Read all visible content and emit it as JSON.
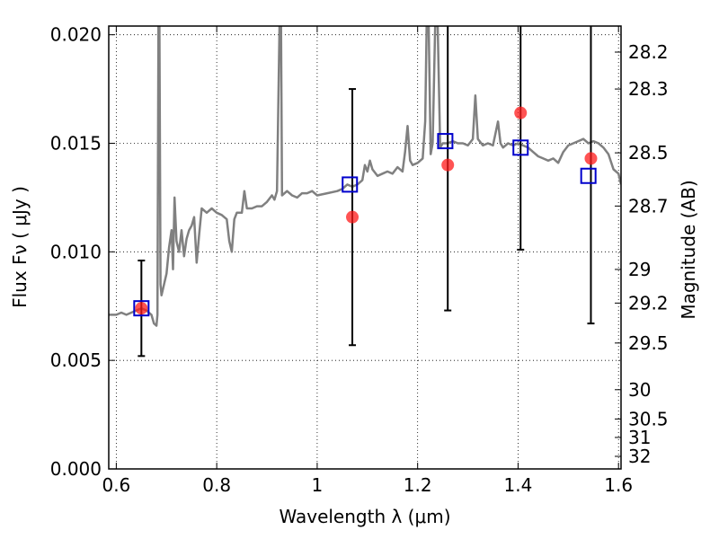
{
  "chart_data": {
    "type": "scatter",
    "xlabel": "Wavelength  λ (μm)",
    "ylabel": "Flux  Fν  ( μJy )",
    "ylabel_right": "Magnitude (AB)",
    "xlim": [
      0.585,
      1.605
    ],
    "ylim": [
      0.0,
      0.0204
    ],
    "grid": true,
    "x_ticks": [
      {
        "value": 0.6,
        "label": "0.6"
      },
      {
        "value": 0.8,
        "label": "0.8"
      },
      {
        "value": 1.0,
        "label": "1"
      },
      {
        "value": 1.2,
        "label": "1.2"
      },
      {
        "value": 1.4,
        "label": "1.4"
      },
      {
        "value": 1.6,
        "label": "1.6"
      }
    ],
    "y_ticks": [
      {
        "value": 0.0,
        "label": "0.000"
      },
      {
        "value": 0.005,
        "label": "0.005"
      },
      {
        "value": 0.01,
        "label": "0.010"
      },
      {
        "value": 0.015,
        "label": "0.015"
      },
      {
        "value": 0.02,
        "label": "0.020"
      }
    ],
    "right_ticks": [
      {
        "label": "28.2",
        "flux": 0.0192
      },
      {
        "label": "28.3",
        "flux": 0.0175
      },
      {
        "label": "28.5",
        "flux": 0.01456
      },
      {
        "label": "28.7",
        "flux": 0.01211
      },
      {
        "label": "29",
        "flux": 0.00919
      },
      {
        "label": "29.2",
        "flux": 0.00764
      },
      {
        "label": "29.5",
        "flux": 0.0058
      },
      {
        "label": "30",
        "flux": 0.00365
      },
      {
        "label": "30.5",
        "flux": 0.0023
      },
      {
        "label": "31",
        "flux": 0.00145
      },
      {
        "label": "32",
        "flux": 0.00058
      }
    ],
    "series": [
      {
        "kind": "spectrum",
        "color": "#808080",
        "points": [
          [
            0.585,
            0.0071
          ],
          [
            0.6,
            0.0071
          ],
          [
            0.61,
            0.0072
          ],
          [
            0.62,
            0.0071
          ],
          [
            0.63,
            0.0072
          ],
          [
            0.64,
            0.0073
          ],
          [
            0.65,
            0.0074
          ],
          [
            0.66,
            0.0073
          ],
          [
            0.67,
            0.0071
          ],
          [
            0.675,
            0.0067
          ],
          [
            0.68,
            0.0066
          ],
          [
            0.682,
            0.0071
          ],
          [
            0.684,
            0.0204
          ],
          [
            0.686,
            0.0204
          ],
          [
            0.688,
            0.0085
          ],
          [
            0.69,
            0.008
          ],
          [
            0.695,
            0.0085
          ],
          [
            0.7,
            0.009
          ],
          [
            0.705,
            0.0102
          ],
          [
            0.71,
            0.011
          ],
          [
            0.713,
            0.0092
          ],
          [
            0.716,
            0.0125
          ],
          [
            0.72,
            0.0105
          ],
          [
            0.725,
            0.01
          ],
          [
            0.73,
            0.011
          ],
          [
            0.735,
            0.0098
          ],
          [
            0.74,
            0.0106
          ],
          [
            0.745,
            0.011
          ],
          [
            0.75,
            0.0112
          ],
          [
            0.755,
            0.0116
          ],
          [
            0.76,
            0.0095
          ],
          [
            0.765,
            0.0108
          ],
          [
            0.77,
            0.012
          ],
          [
            0.78,
            0.0118
          ],
          [
            0.79,
            0.012
          ],
          [
            0.8,
            0.0118
          ],
          [
            0.81,
            0.0117
          ],
          [
            0.82,
            0.0115
          ],
          [
            0.825,
            0.0105
          ],
          [
            0.83,
            0.01
          ],
          [
            0.835,
            0.0115
          ],
          [
            0.84,
            0.0118
          ],
          [
            0.85,
            0.0118
          ],
          [
            0.855,
            0.0128
          ],
          [
            0.86,
            0.012
          ],
          [
            0.87,
            0.012
          ],
          [
            0.88,
            0.0121
          ],
          [
            0.89,
            0.0121
          ],
          [
            0.9,
            0.0123
          ],
          [
            0.91,
            0.0126
          ],
          [
            0.915,
            0.0124
          ],
          [
            0.92,
            0.0128
          ],
          [
            0.925,
            0.0204
          ],
          [
            0.928,
            0.0204
          ],
          [
            0.93,
            0.0126
          ],
          [
            0.94,
            0.0128
          ],
          [
            0.95,
            0.0126
          ],
          [
            0.96,
            0.0125
          ],
          [
            0.97,
            0.0127
          ],
          [
            0.98,
            0.0127
          ],
          [
            0.99,
            0.0128
          ],
          [
            1.0,
            0.0126
          ],
          [
            1.02,
            0.0127
          ],
          [
            1.04,
            0.0128
          ],
          [
            1.05,
            0.0129
          ],
          [
            1.06,
            0.0131
          ],
          [
            1.07,
            0.013
          ],
          [
            1.08,
            0.0131
          ],
          [
            1.09,
            0.0133
          ],
          [
            1.095,
            0.014
          ],
          [
            1.1,
            0.0137
          ],
          [
            1.105,
            0.0142
          ],
          [
            1.11,
            0.0138
          ],
          [
            1.12,
            0.0135
          ],
          [
            1.13,
            0.0136
          ],
          [
            1.14,
            0.0137
          ],
          [
            1.15,
            0.0136
          ],
          [
            1.16,
            0.0139
          ],
          [
            1.17,
            0.0137
          ],
          [
            1.175,
            0.0146
          ],
          [
            1.18,
            0.0158
          ],
          [
            1.185,
            0.0142
          ],
          [
            1.19,
            0.014
          ],
          [
            1.2,
            0.0141
          ],
          [
            1.21,
            0.0143
          ],
          [
            1.215,
            0.016
          ],
          [
            1.218,
            0.0204
          ],
          [
            1.222,
            0.0204
          ],
          [
            1.226,
            0.0145
          ],
          [
            1.23,
            0.015
          ],
          [
            1.235,
            0.0204
          ],
          [
            1.24,
            0.0204
          ],
          [
            1.245,
            0.0148
          ],
          [
            1.25,
            0.015
          ],
          [
            1.26,
            0.015
          ],
          [
            1.27,
            0.0151
          ],
          [
            1.28,
            0.015
          ],
          [
            1.29,
            0.015
          ],
          [
            1.3,
            0.0149
          ],
          [
            1.31,
            0.0152
          ],
          [
            1.315,
            0.0172
          ],
          [
            1.32,
            0.0152
          ],
          [
            1.33,
            0.0149
          ],
          [
            1.34,
            0.015
          ],
          [
            1.35,
            0.0149
          ],
          [
            1.36,
            0.016
          ],
          [
            1.365,
            0.015
          ],
          [
            1.37,
            0.0148
          ],
          [
            1.38,
            0.015
          ],
          [
            1.39,
            0.0149
          ],
          [
            1.4,
            0.015
          ],
          [
            1.41,
            0.0149
          ],
          [
            1.42,
            0.0148
          ],
          [
            1.43,
            0.0146
          ],
          [
            1.44,
            0.0144
          ],
          [
            1.45,
            0.0143
          ],
          [
            1.46,
            0.0142
          ],
          [
            1.47,
            0.0143
          ],
          [
            1.48,
            0.0141
          ],
          [
            1.49,
            0.0146
          ],
          [
            1.5,
            0.0149
          ],
          [
            1.51,
            0.015
          ],
          [
            1.52,
            0.0151
          ],
          [
            1.53,
            0.0152
          ],
          [
            1.54,
            0.015
          ],
          [
            1.55,
            0.0151
          ],
          [
            1.56,
            0.015
          ],
          [
            1.57,
            0.0148
          ],
          [
            1.58,
            0.0145
          ],
          [
            1.59,
            0.0138
          ],
          [
            1.6,
            0.0136
          ],
          [
            1.605,
            0.0131
          ]
        ]
      },
      {
        "kind": "observed",
        "marker": "circle",
        "color": "#ff1a1a",
        "points": [
          {
            "x": 0.65,
            "y": 0.0074,
            "err": [
              0.0052,
              0.0096
            ]
          },
          {
            "x": 1.07,
            "y": 0.0116,
            "err": [
              0.0057,
              0.0175
            ]
          },
          {
            "x": 1.26,
            "y": 0.014,
            "err": [
              0.0073,
              0.0204
            ]
          },
          {
            "x": 1.405,
            "y": 0.0164,
            "err": [
              0.0101,
              0.0204
            ]
          },
          {
            "x": 1.545,
            "y": 0.0143,
            "err": [
              0.0067,
              0.0204
            ]
          }
        ]
      },
      {
        "kind": "model",
        "marker": "square",
        "color": "#0000cc",
        "points": [
          {
            "x": 0.65,
            "y": 0.0074
          },
          {
            "x": 1.065,
            "y": 0.0131
          },
          {
            "x": 1.255,
            "y": 0.0151
          },
          {
            "x": 1.405,
            "y": 0.0148
          },
          {
            "x": 1.54,
            "y": 0.0135
          }
        ]
      }
    ]
  }
}
